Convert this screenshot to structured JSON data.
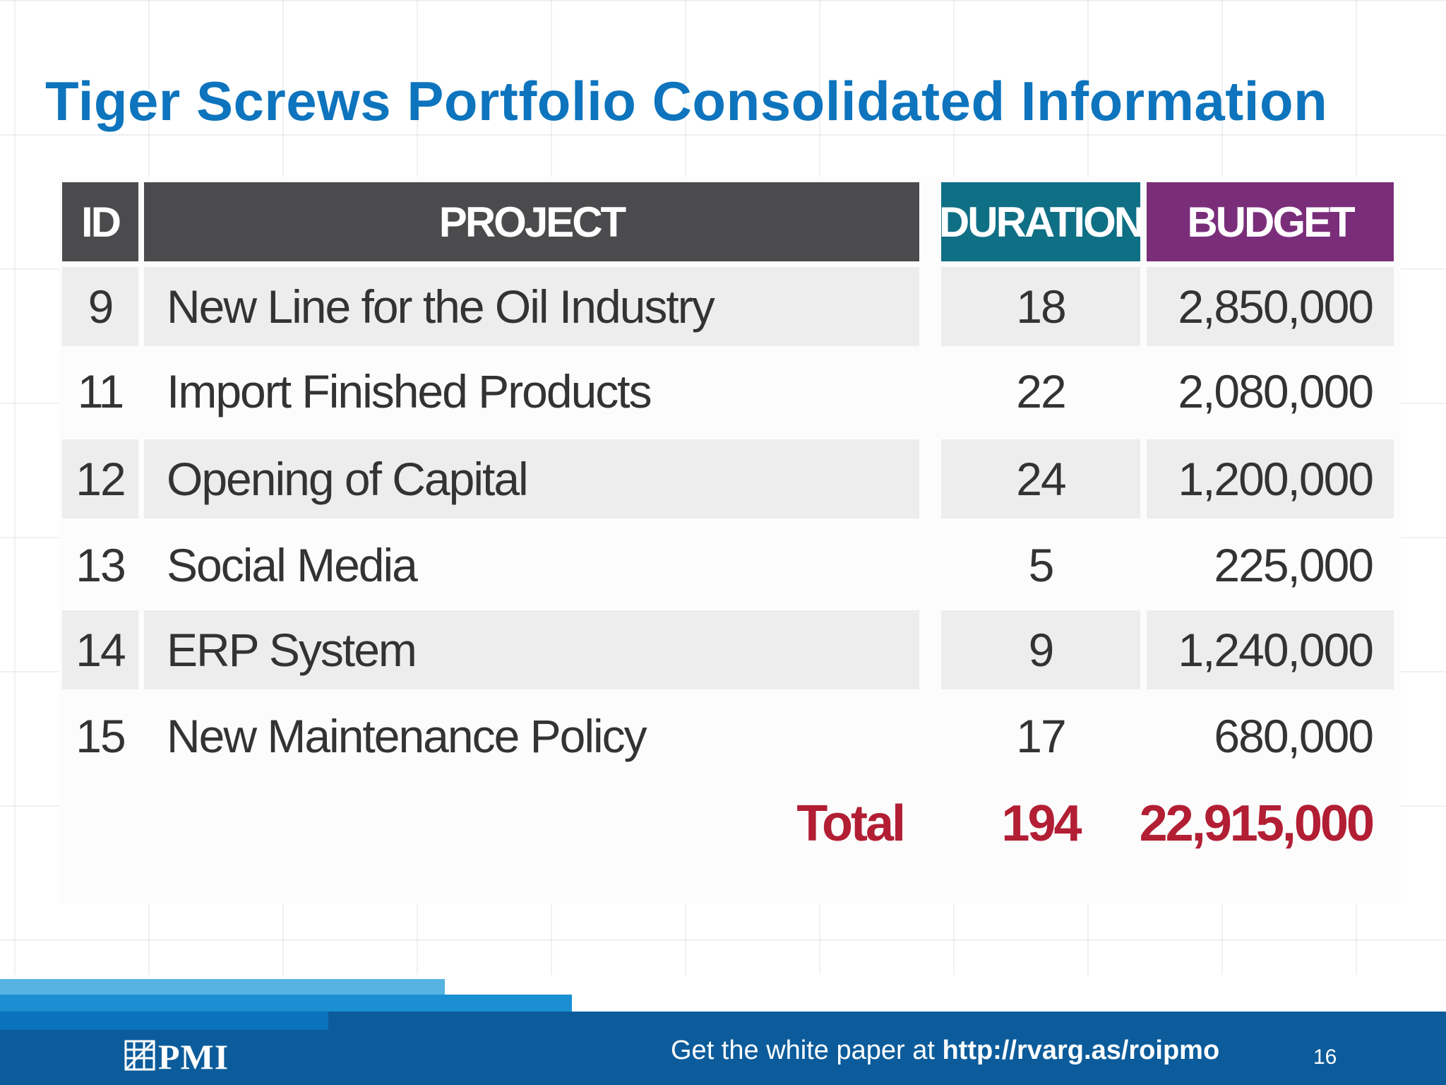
{
  "title": "Tiger Screws Portfolio Consolidated Information",
  "table": {
    "headers": {
      "id": "ID",
      "project": "PROJECT",
      "duration": "DURATION",
      "budget": "BUDGET"
    },
    "rows": [
      {
        "id": "9",
        "project": "New Line for the Oil Industry",
        "duration": "18",
        "budget": "2,850,000"
      },
      {
        "id": "11",
        "project": "Import Finished Products",
        "duration": "22",
        "budget": "2,080,000"
      },
      {
        "id": "12",
        "project": "Opening of Capital",
        "duration": "24",
        "budget": "1,200,000"
      },
      {
        "id": "13",
        "project": "Social Media",
        "duration": "5",
        "budget": "225,000"
      },
      {
        "id": "14",
        "project": "ERP System",
        "duration": "9",
        "budget": "1,240,000"
      },
      {
        "id": "15",
        "project": "New Maintenance Policy",
        "duration": "17",
        "budget": "680,000"
      }
    ],
    "total": {
      "label": "Total",
      "duration": "194",
      "budget": "22,915,000"
    }
  },
  "footer": {
    "logo_text": "PMI",
    "text_prefix": "Get the white paper at ",
    "url": "http://rvarg.as/roipmo",
    "page_number": "16"
  },
  "colors": {
    "title": "#0d74bd",
    "header_dark": "#4b4a4c",
    "header_teal": "#0f6f85",
    "header_purple": "#7a2e7a",
    "total": "#b21e33",
    "footer": "#0c5c9b"
  }
}
